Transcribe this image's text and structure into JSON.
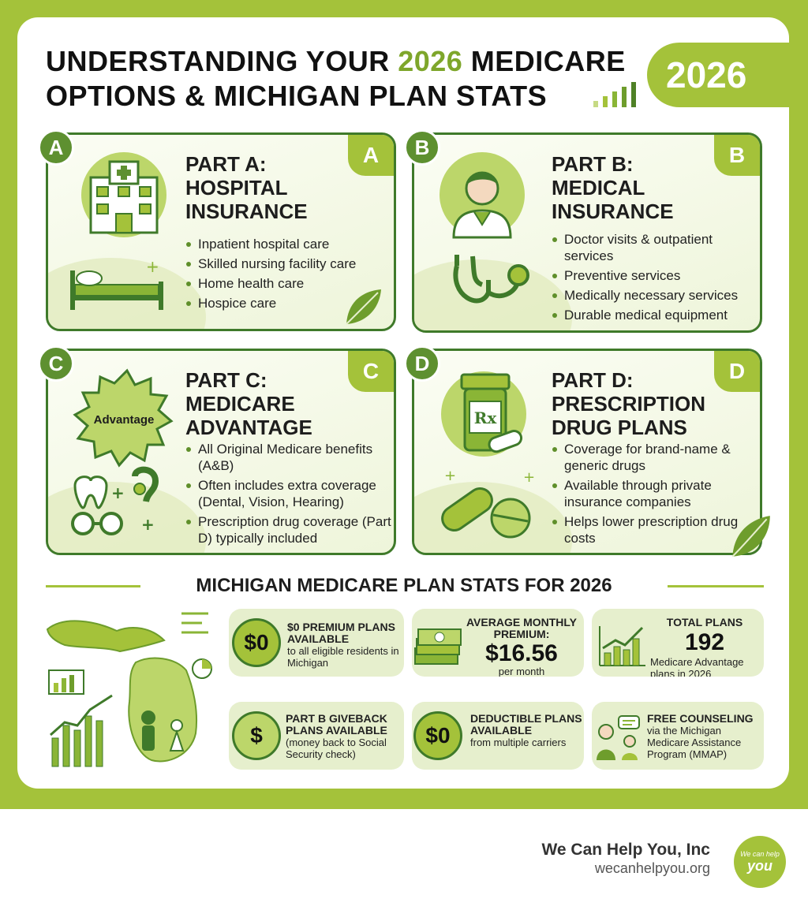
{
  "header": {
    "title_part1": "UNDERSTANDING YOUR ",
    "title_highlight": "2026",
    "title_part2": " MEDICARE",
    "title_line2": "OPTIONS & MICHIGAN PLAN STATS",
    "year_badge": "2026"
  },
  "cards": [
    {
      "letter": "A",
      "title_lines": [
        "PART A:",
        "HOSPITAL",
        "INSURANCE"
      ],
      "items": [
        "Inpatient hospital care",
        "Skilled nursing facility care",
        "Home health care",
        "Hospice care"
      ],
      "icon": "hospital-icon"
    },
    {
      "letter": "B",
      "title_lines": [
        "PART B:",
        "MEDICAL",
        "INSURANCE"
      ],
      "items": [
        "Doctor visits & outpatient services",
        "Preventive services",
        "Medically necessary services",
        "Durable medical equipment"
      ],
      "icon": "doctor-icon"
    },
    {
      "letter": "C",
      "title_lines": [
        "PART C:",
        "MEDICARE",
        "ADVANTAGE"
      ],
      "badge_text": "Advantage",
      "items": [
        "All Original Medicare benefits (A&B)",
        "Often includes extra coverage (Dental, Vision, Hearing)",
        "Prescription drug coverage (Part D) typically included"
      ],
      "icon": "advantage-badge-icon"
    },
    {
      "letter": "D",
      "title_lines": [
        "PART D:",
        "PRESCRIPTION",
        "DRUG PLANS"
      ],
      "rx_label": "Rx",
      "items": [
        "Coverage for brand-name & generic drugs",
        "Available through private insurance companies",
        "Helps lower prescription drug costs"
      ],
      "icon": "pill-bottle-icon"
    }
  ],
  "stats_section": {
    "title": "MICHIGAN MEDICARE PLAN STATS FOR 2026",
    "stats": [
      {
        "icon_text": "$0",
        "bold": "$0 PREMIUM PLANS AVAILABLE",
        "rest": "to all eligible residents in Michigan"
      },
      {
        "bold": "AVERAGE MONTHLY PREMIUM:",
        "value": "$16.56",
        "rest": "per month"
      },
      {
        "bold": "TOTAL PLANS",
        "value": "192",
        "rest": "Medicare Advantage plans in 2026"
      },
      {
        "icon_text": "$",
        "bold": "PART B GIVEBACK PLANS AVAILABLE",
        "rest": "(money back to Social Security check)"
      },
      {
        "icon_text": "$0",
        "bold": "DEDUCTIBLE PLANS AVAILABLE",
        "rest": "from multiple carriers"
      },
      {
        "bold": "FREE COUNSELING",
        "rest": "via the Michigan Medicare Assistance Program (MMAP)"
      }
    ]
  },
  "footer": {
    "company": "We Can Help You, Inc",
    "url": "wecanhelpyou.org",
    "logo_line1": "We can help",
    "logo_line2": "you"
  },
  "colors": {
    "accent": "#a4c23a",
    "dark_green": "#3f7a2a",
    "text": "#111111"
  }
}
